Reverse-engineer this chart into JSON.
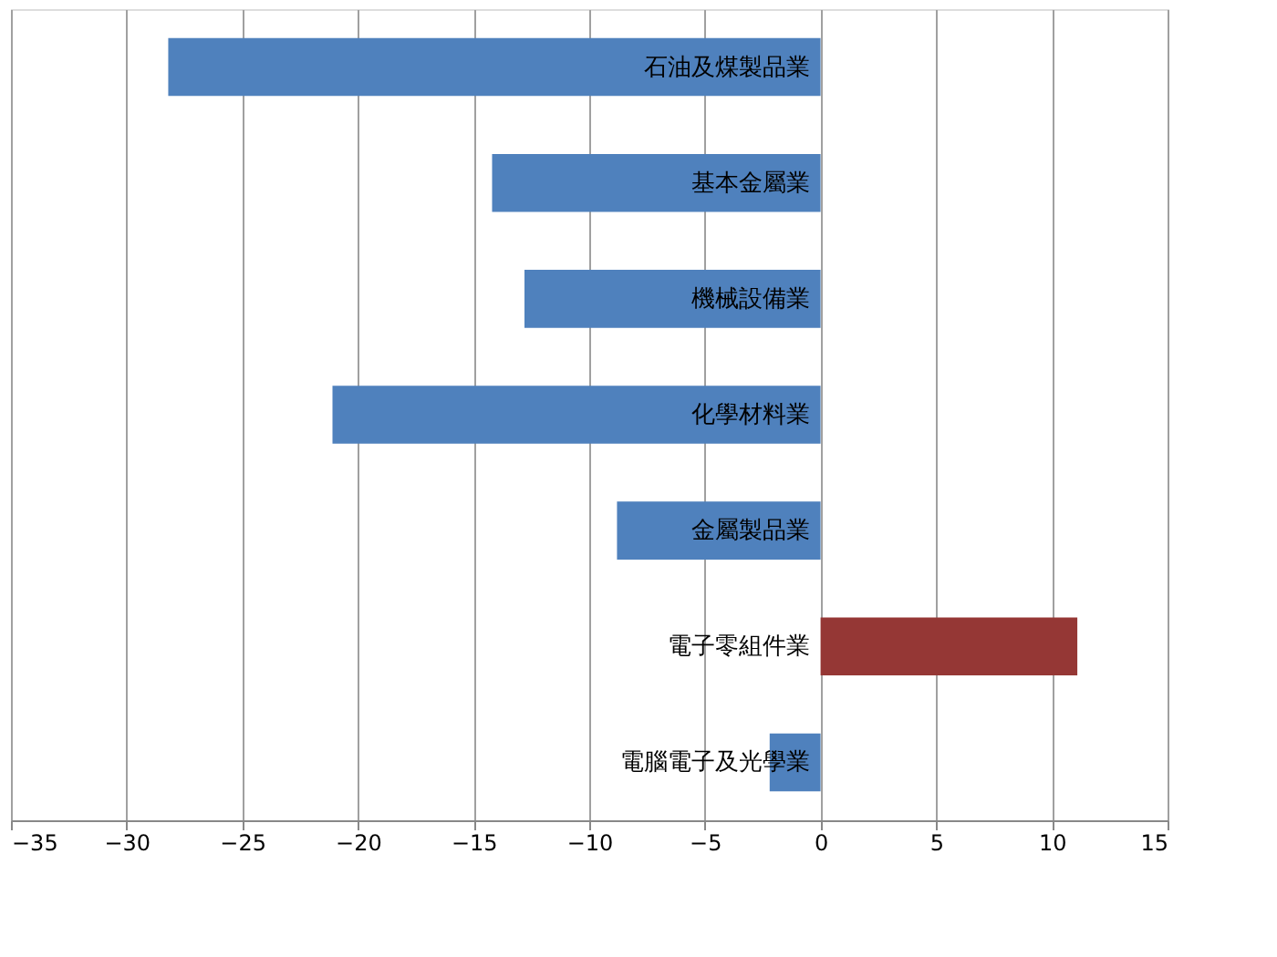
{
  "chart_data": {
    "type": "bar",
    "orientation": "horizontal",
    "categories": [
      "石油及煤製品業",
      "基本金屬業",
      "機械設備業",
      "化學材料業",
      "金屬製品業",
      "電子零組件業",
      "電腦電子及光學業"
    ],
    "values": [
      -28.2,
      -14.2,
      -12.8,
      -21.1,
      -8.8,
      11.1,
      -2.2
    ],
    "colors": [
      "#4f81bd",
      "#4f81bd",
      "#4f81bd",
      "#4f81bd",
      "#4f81bd",
      "#953735",
      "#4f81bd"
    ],
    "xlim": [
      -35,
      15
    ],
    "xticks": [
      -35,
      -30,
      -25,
      -20,
      -15,
      -10,
      -5,
      0,
      5,
      10,
      15
    ],
    "grid": "x"
  }
}
